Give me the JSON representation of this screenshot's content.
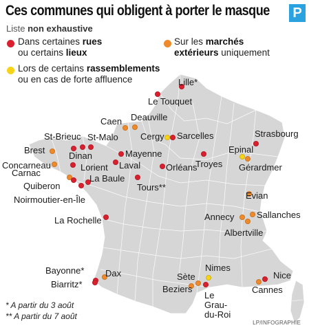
{
  "title": "Ces communes qui obligent à porter le masque",
  "logo": "P",
  "subtitle": {
    "prefix": "Liste",
    "bold": "non exhaustive"
  },
  "colors": {
    "red": "#d9202e",
    "orange": "#ef8a2a",
    "yellow": "#f7d417",
    "land": "#d6d6d6",
    "border": "#ffffff",
    "sea": "#ffffff"
  },
  "legend": [
    {
      "color": "red",
      "lines": [
        [
          "Dans certaines ",
          "rues"
        ],
        [
          "ou certains ",
          "lieux"
        ]
      ]
    },
    {
      "color": "orange",
      "lines": [
        [
          "Sur les ",
          "marchés"
        ],
        [
          "",
          "extérieurs",
          " uniquement"
        ]
      ]
    },
    {
      "color": "yellow",
      "lines": [
        [
          "Lors de certains ",
          "rassemblements"
        ],
        [
          "ou en cas de forte affluence"
        ]
      ]
    }
  ],
  "cities": [
    {
      "name": "Lille*",
      "color": "red"
    },
    {
      "name": "Le Touquet",
      "color": "red"
    },
    {
      "name": "Caen",
      "color": "orange"
    },
    {
      "name": "Deauville",
      "color": "orange"
    },
    {
      "name": "Cergy",
      "color": "yellow"
    },
    {
      "name": "Sarcelles",
      "color": "red"
    },
    {
      "name": "Strasbourg",
      "color": "red"
    },
    {
      "name": "St-Brieuc",
      "color": "red"
    },
    {
      "name": "St-Malo",
      "color": "red"
    },
    {
      "name": "Brest",
      "color": "orange"
    },
    {
      "name": "Dinan",
      "color": "red"
    },
    {
      "name": "Mayenne",
      "color": "red"
    },
    {
      "name": "Epinal",
      "color": "yellow"
    },
    {
      "name": "Concarneau",
      "color": "orange"
    },
    {
      "name": "Lorient",
      "color": "red"
    },
    {
      "name": "Laval",
      "color": "red"
    },
    {
      "name": "Troyes",
      "color": "red"
    },
    {
      "name": "Orléans",
      "color": "red"
    },
    {
      "name": "Gérardmer",
      "color": "orange"
    },
    {
      "name": "Carnac",
      "color": "orange"
    },
    {
      "name": "Quiberon",
      "color": "red"
    },
    {
      "name": "La Baule",
      "color": "red"
    },
    {
      "name": "Tours**",
      "color": "red"
    },
    {
      "name": "Noirmoutier-en-Île",
      "color": "red"
    },
    {
      "name": "Evian",
      "color": "orange"
    },
    {
      "name": "La Rochelle",
      "color": "red"
    },
    {
      "name": "Annecy",
      "color": "orange"
    },
    {
      "name": "Sallanches",
      "color": "orange"
    },
    {
      "name": "Albertville",
      "color": "orange"
    },
    {
      "name": "Bayonne*",
      "color": "red"
    },
    {
      "name": "Dax",
      "color": "orange"
    },
    {
      "name": "Biarritz*",
      "color": "red"
    },
    {
      "name": "Nimes",
      "color": "yellow"
    },
    {
      "name": "Sète",
      "color": "orange"
    },
    {
      "name": "Nice",
      "color": "red"
    },
    {
      "name": "Beziers",
      "color": "orange"
    },
    {
      "name": "Le Grau-du-Roi",
      "color": "red"
    },
    {
      "name": "Cannes",
      "color": "orange"
    }
  ],
  "footnotes": [
    "* A partir du 3 août",
    "** A partir du 7 août"
  ],
  "credit": "LP/INFOGRAPHIE"
}
